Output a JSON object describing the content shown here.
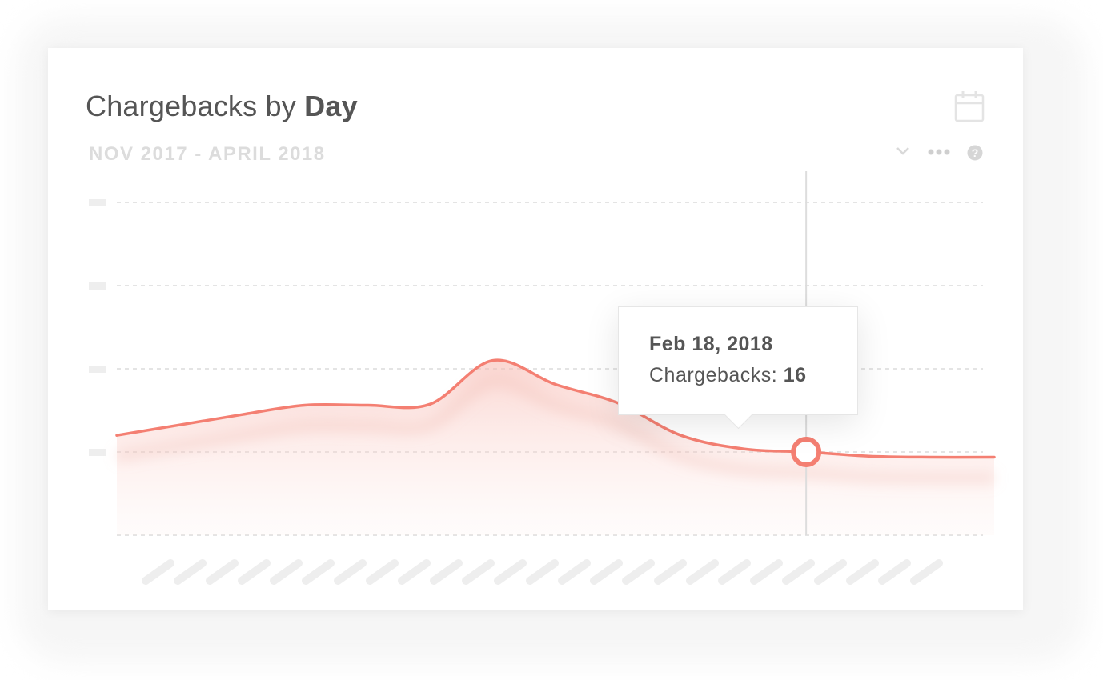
{
  "header": {
    "title_prefix": "Chargebacks by",
    "title_bold": "Day",
    "date_range": "NOV 2017 - APRIL 2018"
  },
  "toolbar": {
    "icons": [
      "calendar-icon",
      "chevron-down-icon",
      "more-dots-icon",
      "help-icon"
    ]
  },
  "tooltip": {
    "date": "Feb 18, 2018",
    "metric_label": "Chargebacks:",
    "metric_value": "16"
  },
  "colors": {
    "line": "#f47f72",
    "area": "#fbdcd8",
    "grid": "#e4e4e4",
    "placeholder": "#eeeeee",
    "crosshair": "#dddddd"
  },
  "chart_data": {
    "type": "area",
    "series": [
      {
        "values": [
          17.6,
          18.6,
          19.6,
          20.5,
          20.5,
          20.6,
          24.8,
          22.5,
          20.7,
          17.6,
          16.3,
          16.0,
          15.6,
          15.5,
          15.5
        ]
      }
    ],
    "highlighted_point": {
      "index": 11,
      "date": "Feb 18, 2018",
      "value": 16
    },
    "ylim": [
      8,
      40
    ],
    "y_gridlines": 5,
    "y_tick_labels_visible": false,
    "x_tick_labels_visible": false,
    "grid": true,
    "legend": "none"
  }
}
